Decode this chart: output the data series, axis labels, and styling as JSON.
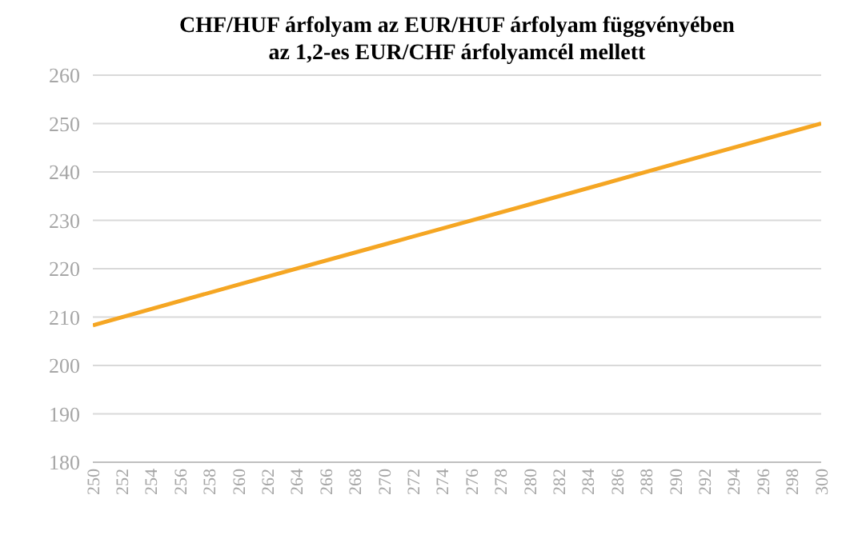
{
  "chart_data": {
    "type": "line",
    "title": "CHF/HUF árfolyam az EUR/HUF  árfolyam függvényében\naz 1,2-es EUR/CHF árfolyamcél  mellett",
    "x": [
      250,
      260,
      270,
      280,
      290,
      300
    ],
    "series": [
      {
        "color": "#f5a623",
        "values": [
          208.3,
          216.7,
          225,
          233.3,
          241.7,
          250
        ]
      }
    ],
    "xlim": [
      250,
      300
    ],
    "xticks": [
      250,
      252,
      254,
      256,
      258,
      260,
      262,
      264,
      266,
      268,
      270,
      272,
      274,
      276,
      278,
      280,
      282,
      284,
      286,
      288,
      290,
      292,
      294,
      296,
      298,
      300
    ],
    "ylim": [
      180,
      260
    ],
    "yticks": [
      180,
      190,
      200,
      210,
      220,
      230,
      240,
      250,
      260
    ],
    "grid": "y",
    "legend": false,
    "marker": "none",
    "line_style": "solid"
  }
}
